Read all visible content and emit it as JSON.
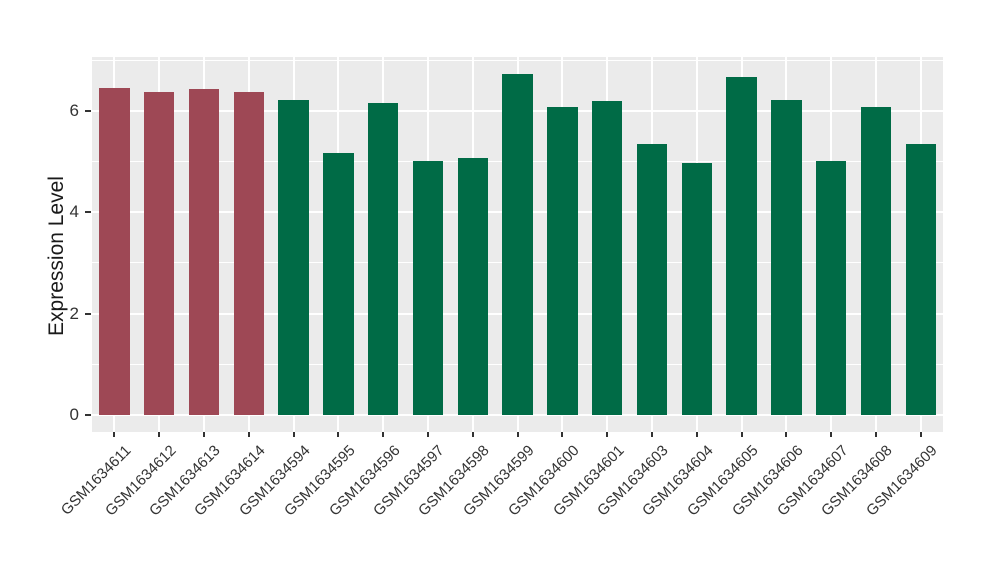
{
  "figure": {
    "background": "#FFFFFF"
  },
  "chart_data": {
    "type": "bar",
    "title": "",
    "xlabel": "",
    "ylabel": "Expression Level",
    "ylim": [
      0,
      7.06
    ],
    "yticks": [
      0,
      2,
      4,
      6
    ],
    "yticks_minor": [
      1,
      3,
      5,
      7
    ],
    "grid": "on",
    "legend_position": "none",
    "panel_background": "#EBEBEB",
    "grid_color": "#FFFFFF",
    "axis_text_color": "#333333",
    "axis_title_color": "#1A1A1A",
    "categories": [
      "GSM1634611",
      "GSM1634612",
      "GSM1634613",
      "GSM1634614",
      "GSM1634594",
      "GSM1634595",
      "GSM1634596",
      "GSM1634597",
      "GSM1634598",
      "GSM1634599",
      "GSM1634600",
      "GSM1634601",
      "GSM1634603",
      "GSM1634604",
      "GSM1634605",
      "GSM1634606",
      "GSM1634607",
      "GSM1634608",
      "GSM1634609"
    ],
    "values": [
      6.45,
      6.38,
      6.44,
      6.37,
      6.21,
      5.17,
      6.15,
      5.01,
      5.07,
      6.73,
      6.08,
      6.2,
      5.34,
      4.98,
      6.67,
      6.22,
      5.01,
      6.08,
      5.34
    ],
    "groups": [
      "highlighted",
      "highlighted",
      "highlighted",
      "highlighted",
      "control",
      "control",
      "control",
      "control",
      "control",
      "control",
      "control",
      "control",
      "control",
      "control",
      "control",
      "control",
      "control",
      "control",
      "control"
    ],
    "group_colors": {
      "highlighted": "#9E4855",
      "control": "#006B46"
    }
  }
}
